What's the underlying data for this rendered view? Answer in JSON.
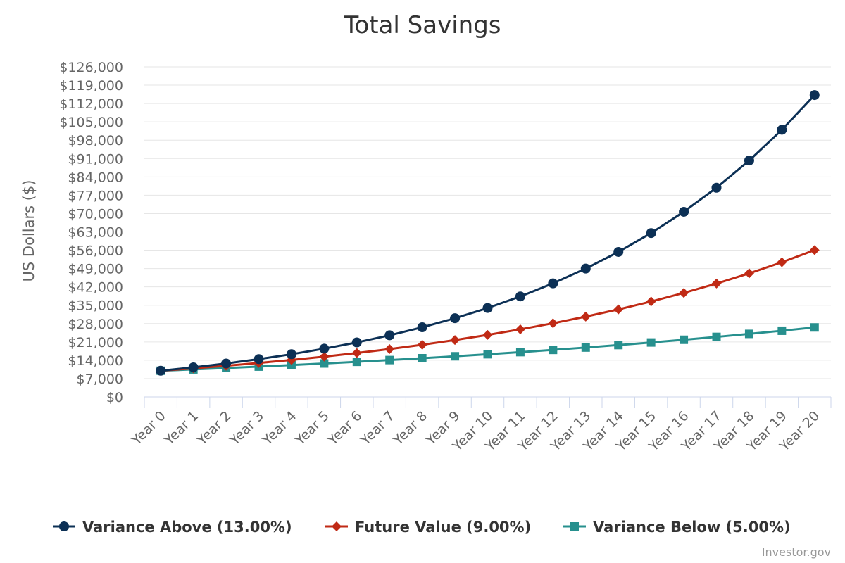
{
  "chart_data": {
    "type": "line",
    "title": "Total Savings",
    "ylabel": "US Dollars ($)",
    "xlabel": "",
    "ylim": [
      0,
      126000
    ],
    "y_ticks": [
      "$0",
      "$7,000",
      "$14,000",
      "$21,000",
      "$28,000",
      "$35,000",
      "$42,000",
      "$49,000",
      "$56,000",
      "$63,000",
      "$70,000",
      "$77,000",
      "$84,000",
      "$91,000",
      "$98,000",
      "$105,000",
      "$112,000",
      "$119,000",
      "$126,000"
    ],
    "y_tick_values": [
      0,
      7000,
      14000,
      21000,
      28000,
      35000,
      42000,
      49000,
      56000,
      63000,
      70000,
      77000,
      84000,
      91000,
      98000,
      105000,
      112000,
      119000,
      126000
    ],
    "categories": [
      "Year 0",
      "Year 1",
      "Year 2",
      "Year 3",
      "Year 4",
      "Year 5",
      "Year 6",
      "Year 7",
      "Year 8",
      "Year 9",
      "Year 10",
      "Year 11",
      "Year 12",
      "Year 13",
      "Year 14",
      "Year 15",
      "Year 16",
      "Year 17",
      "Year 18",
      "Year 19",
      "Year 20"
    ],
    "series": [
      {
        "name": "Variance Above (13.00%)",
        "color": "#0c3055",
        "marker": "circle",
        "values": [
          10000,
          11300,
          12769,
          14429,
          16305,
          18424,
          20820,
          23526,
          26584,
          30040,
          33946,
          38359,
          43345,
          48980,
          55348,
          62543,
          70673,
          79861,
          90243,
          101974,
          115231
        ]
      },
      {
        "name": "Future Value (9.00%)",
        "color": "#c02a15",
        "marker": "diamond",
        "values": [
          10000,
          10900,
          11881,
          12950,
          14116,
          15386,
          16771,
          18280,
          19926,
          21719,
          23674,
          25804,
          28127,
          30658,
          33417,
          36425,
          39703,
          43276,
          47171,
          51417,
          56044
        ]
      },
      {
        "name": "Variance Below (5.00%)",
        "color": "#27908e",
        "marker": "square",
        "values": [
          10000,
          10500,
          11025,
          11576,
          12155,
          12763,
          13401,
          14071,
          14775,
          15513,
          16289,
          17103,
          17959,
          18856,
          19799,
          20789,
          21829,
          22920,
          24066,
          25270,
          26533
        ]
      }
    ],
    "legend_position": "bottom",
    "grid": true
  },
  "credit": "Investor.gov"
}
